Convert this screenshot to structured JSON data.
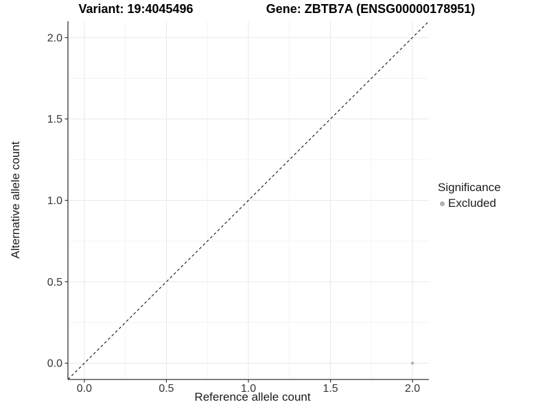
{
  "chart_data": {
    "type": "scatter",
    "title_left": "Variant: 19:4045496",
    "title_right": "Gene: ZBTB7A (ENSG00000178951)",
    "xlabel": "Reference allele count",
    "ylabel": "Alternative allele count",
    "xlim": [
      -0.1,
      2.1
    ],
    "ylim": [
      -0.1,
      2.1
    ],
    "x_ticks": [
      0.0,
      0.5,
      1.0,
      1.5,
      2.0
    ],
    "x_tick_labels": [
      "0.0",
      "0.5",
      "1.0",
      "1.5",
      "2.0"
    ],
    "y_ticks": [
      0.0,
      0.5,
      1.0,
      1.5,
      2.0
    ],
    "y_tick_labels": [
      "0.0",
      "0.5",
      "1.0",
      "1.5",
      "2.0"
    ],
    "minor_tick_step": 0.25,
    "grid": {
      "show": true,
      "major_color": "#e8e8e8",
      "minor_color": "#f3f3f3"
    },
    "axis_color": "#333333",
    "reference_line": {
      "style": "dashed",
      "slope": 1,
      "intercept": 0,
      "color": "#111111"
    },
    "series": [
      {
        "name": "Excluded",
        "color": "#b5b5b5",
        "points": [
          [
            2.0,
            0.0
          ]
        ]
      }
    ],
    "legend": {
      "title": "Significance",
      "position": "right",
      "entries": [
        {
          "label": "Excluded",
          "color": "#b0b0b0"
        }
      ]
    }
  }
}
